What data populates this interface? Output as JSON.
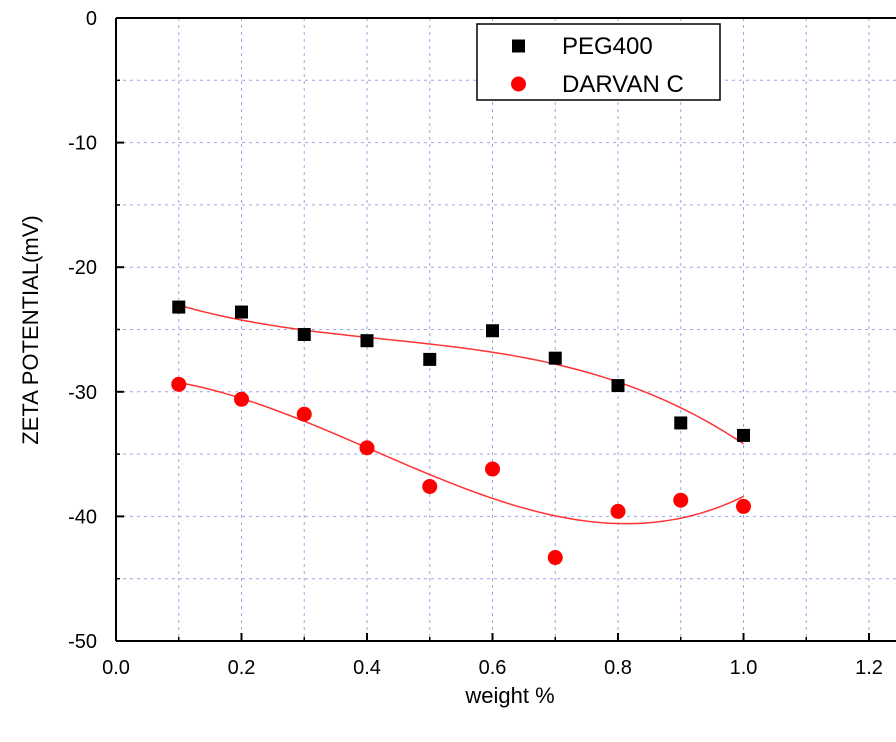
{
  "chart_data": {
    "type": "scatter",
    "title": "",
    "xlabel": "weight %",
    "ylabel": "ZETA POTENTIAL(mV)",
    "xlim": [
      0.0,
      1.2
    ],
    "ylim": [
      -50,
      0
    ],
    "x_ticks": [
      "0.0",
      "0.2",
      "0.4",
      "0.6",
      "0.8",
      "1.0",
      "1.2"
    ],
    "y_ticks": [
      "0",
      "-10",
      "-20",
      "-30",
      "-40",
      "-50"
    ],
    "grid": true,
    "legend_position": "top-right",
    "series": [
      {
        "name": "PEG400",
        "marker": "square",
        "color": "#000000",
        "points": [
          [
            0.1,
            -23.2
          ],
          [
            0.2,
            -23.6
          ],
          [
            0.3,
            -25.4
          ],
          [
            0.4,
            -25.9
          ],
          [
            0.5,
            -27.4
          ],
          [
            0.6,
            -25.1
          ],
          [
            0.7,
            -27.3
          ],
          [
            0.8,
            -29.5
          ],
          [
            0.9,
            -32.5
          ],
          [
            1.0,
            -33.5
          ]
        ]
      },
      {
        "name": "DARVAN C",
        "marker": "circle",
        "color": "#ff0000",
        "points": [
          [
            0.1,
            -29.4
          ],
          [
            0.2,
            -30.6
          ],
          [
            0.3,
            -31.8
          ],
          [
            0.4,
            -34.5
          ],
          [
            0.5,
            -37.6
          ],
          [
            0.6,
            -36.2
          ],
          [
            0.7,
            -43.3
          ],
          [
            0.8,
            -39.6
          ],
          [
            0.9,
            -38.7
          ],
          [
            1.0,
            -39.2
          ]
        ]
      }
    ],
    "fit_color": "#ff3333"
  }
}
